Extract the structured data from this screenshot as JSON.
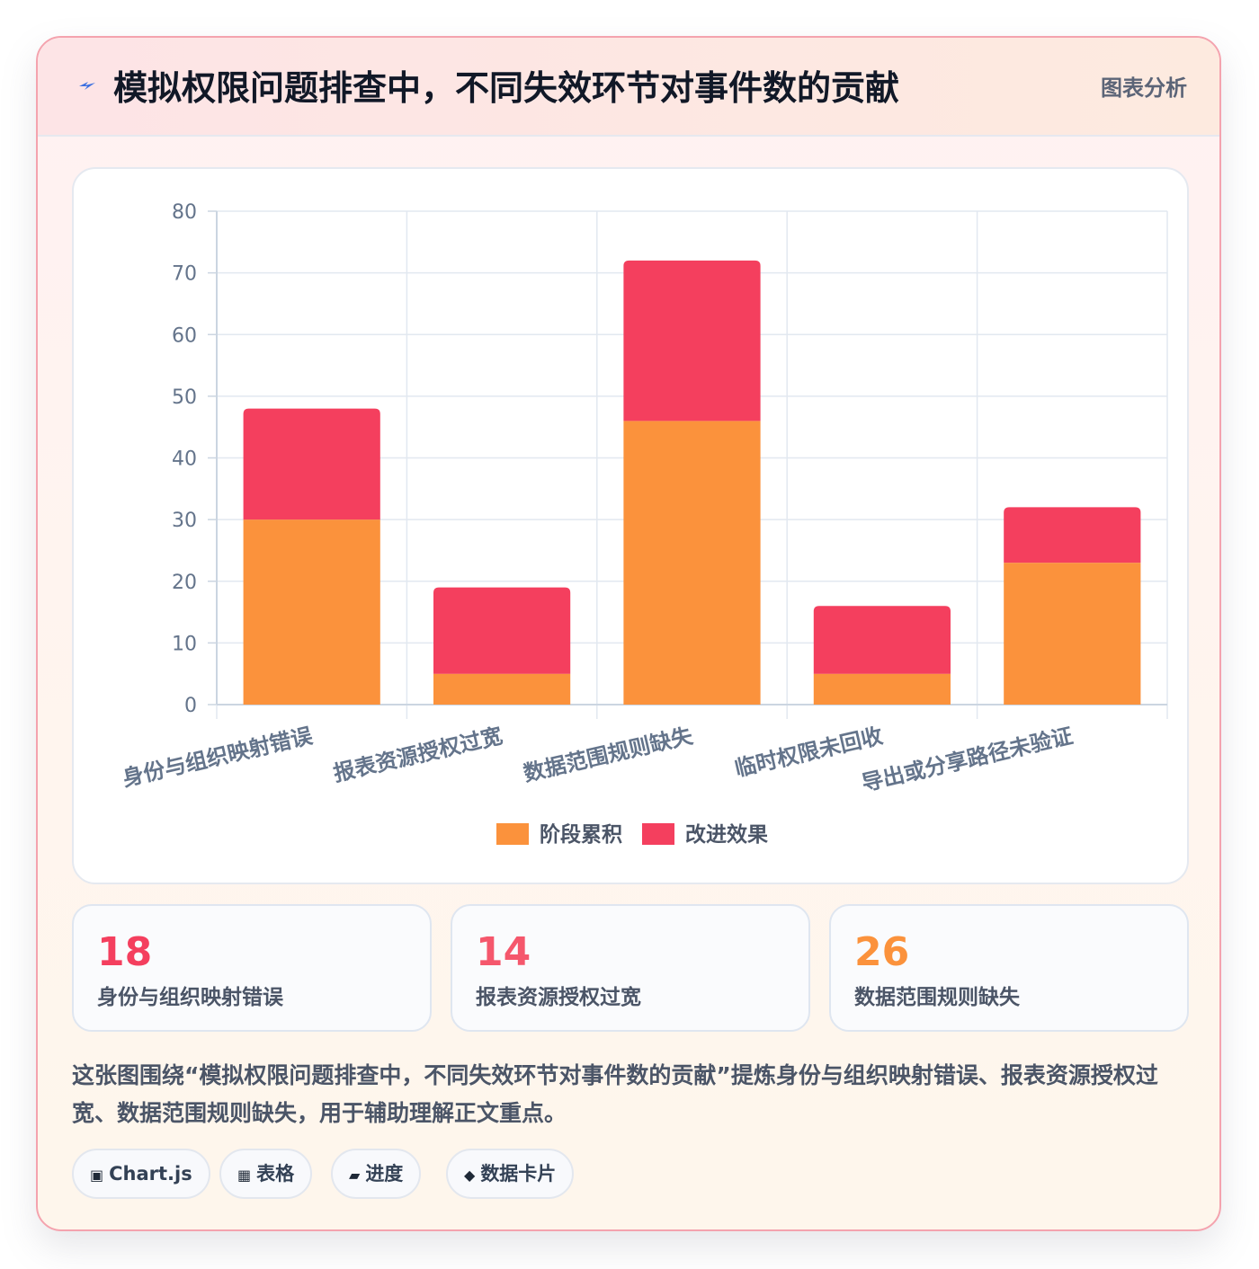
{
  "header": {
    "icon": "lightning-icon",
    "title": "模拟权限问题排查中，不同失效环节对事件数的贡献",
    "tag": "图表分析"
  },
  "chart_data": {
    "type": "bar",
    "stacked": true,
    "categories": [
      "身份与组织映射错误",
      "报表资源授权过宽",
      "数据范围规则缺失",
      "临时权限未回收",
      "导出或分享路径未验证"
    ],
    "series": [
      {
        "name": "阶段累积",
        "color": "#fb923c",
        "values": [
          30,
          5,
          46,
          5,
          23
        ]
      },
      {
        "name": "改进效果",
        "color": "#f43f5e",
        "values": [
          18,
          14,
          26,
          11,
          9
        ]
      }
    ],
    "ylim": [
      0,
      80
    ],
    "yticks": [
      0,
      10,
      20,
      30,
      40,
      50,
      60,
      70,
      80
    ],
    "grid": true,
    "legend": "bottom",
    "xlabel": "",
    "ylabel": ""
  },
  "stats": [
    {
      "value": "18",
      "label": "身份与组织映射错误",
      "color": "#f43f5e"
    },
    {
      "value": "14",
      "label": "报表资源授权过宽",
      "color": "#f5576c"
    },
    {
      "value": "26",
      "label": "数据范围规则缺失",
      "color": "#fb923c"
    }
  ],
  "summary": "这张图围绕“模拟权限问题排查中，不同失效环节对事件数的贡献”提炼身份与组织映射错误、报表资源授权过宽、数据范围规则缺失，用于辅助理解正文重点。",
  "chips": [
    {
      "icon": "▣",
      "icon_name": "chart-icon",
      "label": "Chart.js"
    },
    {
      "icon": "▦",
      "icon_name": "table-icon",
      "label": "表格"
    },
    {
      "icon": "▰",
      "icon_name": "progress-icon",
      "label": "进度"
    },
    {
      "icon": "◆",
      "icon_name": "diamond-icon",
      "label": "数据卡片"
    }
  ]
}
